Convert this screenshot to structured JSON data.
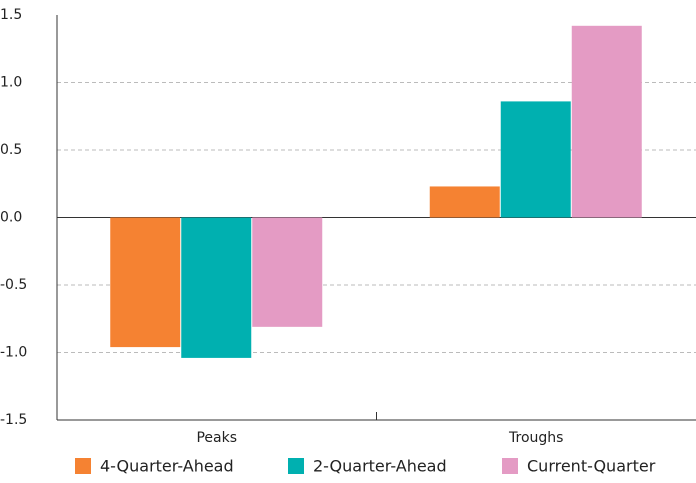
{
  "chart_data": {
    "type": "bar",
    "categories": [
      "Peaks",
      "Troughs"
    ],
    "series": [
      {
        "name": "4-Quarter-Ahead",
        "color": "#f58232",
        "values": [
          -0.96,
          0.23
        ]
      },
      {
        "name": "2-Quarter-Ahead",
        "color": "#00b0b0",
        "values": [
          -1.04,
          0.86
        ]
      },
      {
        "name": "Current-Quarter",
        "color": "#e49bc4",
        "values": [
          -0.81,
          1.42
        ]
      }
    ],
    "ylim": [
      -1.5,
      1.5
    ],
    "yticks": [
      1.5,
      {
        "value": 1,
        "label": "1.0"
      },
      0.5,
      {
        "value": 0,
        "label": "0.0"
      },
      -0.5,
      {
        "value": -1,
        "label": "-1.0"
      },
      -1.5
    ],
    "grid": true,
    "legend": "bottom"
  }
}
